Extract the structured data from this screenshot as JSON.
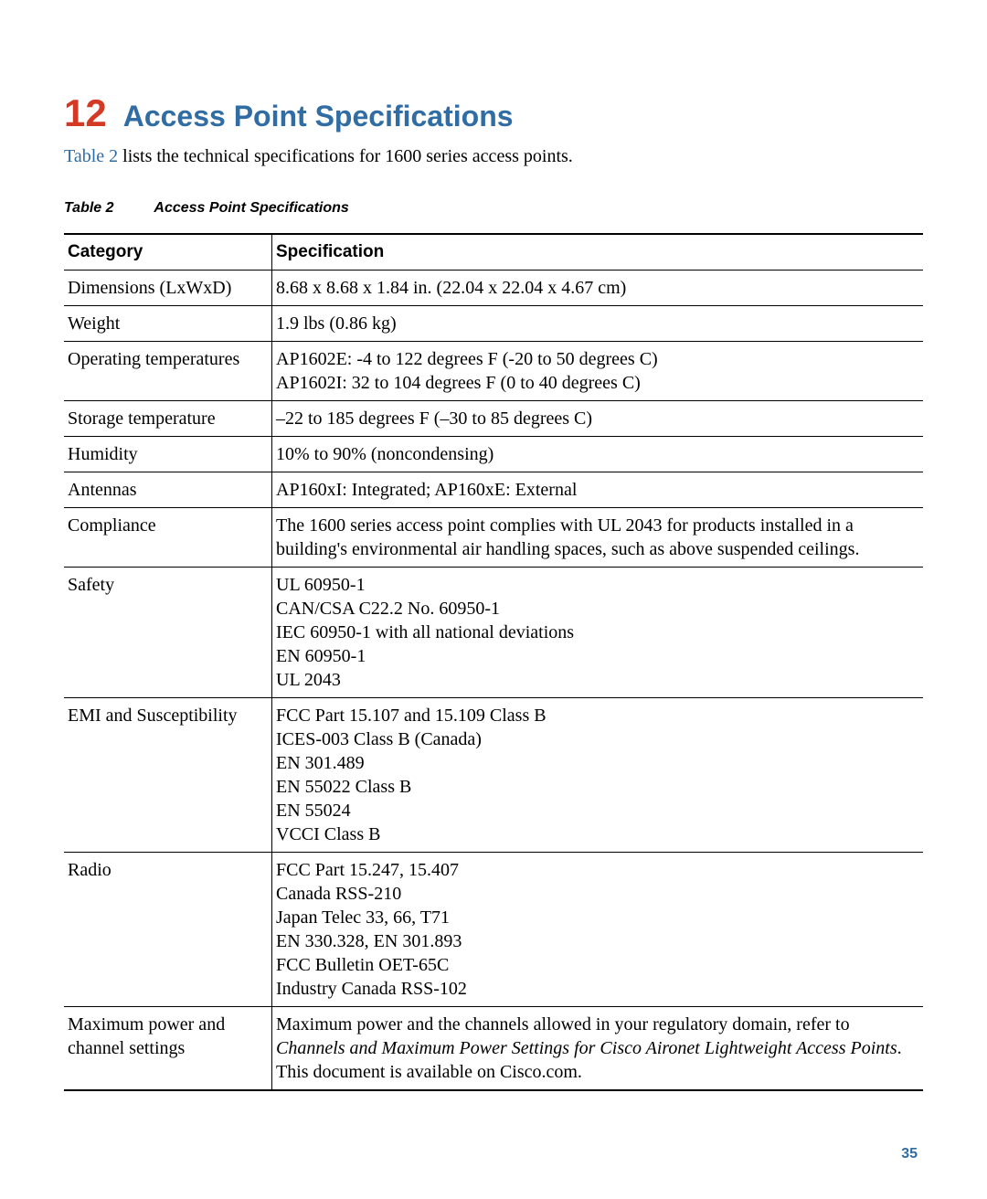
{
  "chapter": {
    "number": "12",
    "title": "Access Point Specifications"
  },
  "intro": {
    "link": "Table 2",
    "rest": " lists the technical specifications for 1600 series access points."
  },
  "table_caption": {
    "label": "Table 2",
    "title": "Access Point Specifications"
  },
  "columns": {
    "category": "Category",
    "specification": "Specification"
  },
  "rows": [
    {
      "category": "Dimensions (LxWxD)",
      "spec": "8.68 x 8.68 x 1.84 in. (22.04 x 22.04 x 4.67 cm)"
    },
    {
      "category": "Weight",
      "spec": "1.9 lbs (0.86 kg)"
    },
    {
      "category": "Operating temperatures",
      "spec": "AP1602E: -4 to 122 degrees F (-20 to 50 degrees C)\nAP1602I: 32 to 104 degrees F (0 to 40 degrees C)"
    },
    {
      "category": "Storage temperature",
      "spec": "–22 to 185 degrees F (–30 to 85 degrees C)"
    },
    {
      "category": "Humidity",
      "spec": "10% to 90% (noncondensing)"
    },
    {
      "category": "Antennas",
      "spec": "AP160xI: Integrated; AP160xE: External"
    },
    {
      "category": "Compliance",
      "spec": "The 1600 series access point complies with UL 2043 for products installed in a building's environmental air handling spaces, such as above suspended ceilings."
    },
    {
      "category": "Safety",
      "spec": "UL 60950-1\nCAN/CSA C22.2 No. 60950-1\nIEC 60950-1 with all national deviations\nEN 60950-1\nUL 2043"
    },
    {
      "category": "EMI and Susceptibility",
      "spec": "FCC Part 15.107 and 15.109 Class B\nICES-003 Class B (Canada)\nEN 301.489\nEN 55022 Class B\nEN 55024\nVCCI Class B"
    },
    {
      "category": "Radio",
      "spec": "FCC Part 15.247, 15.407\nCanada RSS-210\nJapan Telec 33, 66, T71\nEN 330.328, EN 301.893\nFCC Bulletin OET-65C\nIndustry Canada RSS-102"
    },
    {
      "category": "Maximum power and channel settings",
      "spec_pre": "Maximum power and the channels allowed in your regulatory domain, refer to ",
      "spec_italic": "Channels and Maximum Power Settings for Cisco Aironet Lightweight Access Points",
      "spec_post": ". This document is available on Cisco.com."
    }
  ],
  "page_number": "35"
}
